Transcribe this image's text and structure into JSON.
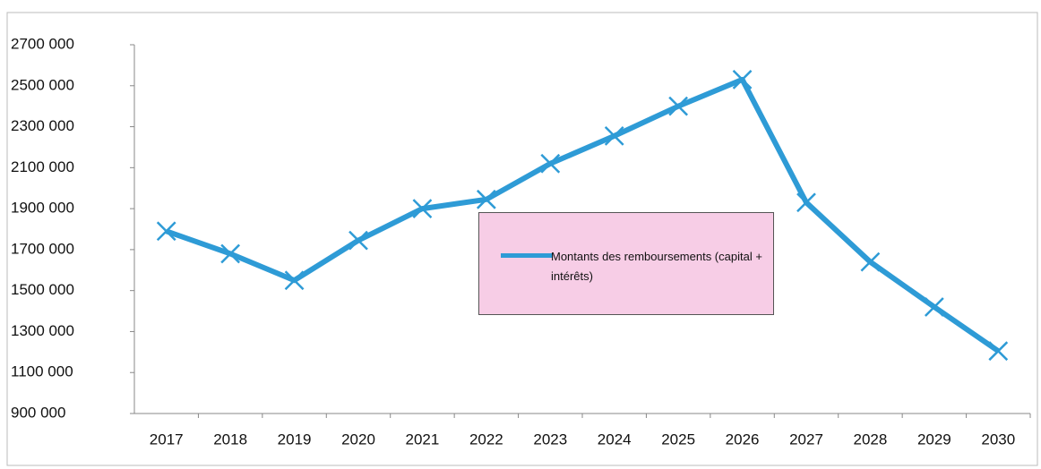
{
  "chart_data": {
    "type": "line",
    "categories": [
      "2017",
      "2018",
      "2019",
      "2020",
      "2021",
      "2022",
      "2023",
      "2024",
      "2025",
      "2026",
      "2027",
      "2028",
      "2029",
      "2030"
    ],
    "series": [
      {
        "name": "Montants des remboursements (capital + intérêts)",
        "color": "#2e9bd6",
        "values": [
          1790000,
          1680000,
          1550000,
          1745000,
          1900000,
          1945000,
          2120000,
          2255000,
          2400000,
          2530000,
          1930000,
          1640000,
          1420000,
          1205000
        ]
      }
    ],
    "ylim": [
      900000,
      2700000
    ],
    "yticks": [
      {
        "value": 900000,
        "label": "900 000"
      },
      {
        "value": 1100000,
        "label": "1100 000"
      },
      {
        "value": 1300000,
        "label": "1300 000"
      },
      {
        "value": 1500000,
        "label": "1500 000"
      },
      {
        "value": 1700000,
        "label": "1700 000"
      },
      {
        "value": 1900000,
        "label": "1900 000"
      },
      {
        "value": 2100000,
        "label": "2100 000"
      },
      {
        "value": 2300000,
        "label": "2300 000"
      },
      {
        "value": 2500000,
        "label": "2500 000"
      },
      {
        "value": 2700000,
        "label": "2700 000"
      }
    ],
    "grid": false,
    "legend": "center"
  }
}
